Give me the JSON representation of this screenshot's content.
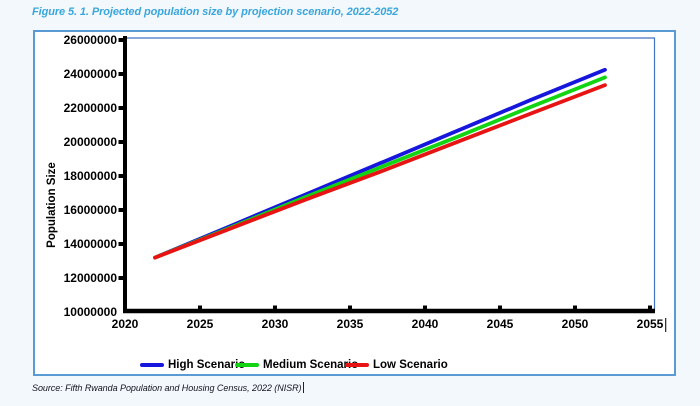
{
  "page": {
    "figure_title": "Figure 5. 1. Projected population size by projection scenario, 2022-2052",
    "source": "Source: Fifth Rwanda Population and Housing Census, 2022 (NISR)"
  },
  "colors": {
    "figure_title": "#39a6dc",
    "figure_box_border": "#5b9bd5",
    "plot_border": "#4472c4",
    "axis": "#000000",
    "high_scenario": "#1616dd",
    "medium_scenario": "#12d412",
    "low_scenario": "#e81414"
  },
  "chart_data": {
    "type": "line",
    "title": "Figure 5. 1. Projected population size by projection scenario, 2022-2052",
    "xlabel": "",
    "ylabel": "Population Size",
    "xlim": [
      2020,
      2055
    ],
    "ylim": [
      10000000,
      26000000
    ],
    "x_ticks": [
      2020,
      2025,
      2030,
      2035,
      2040,
      2045,
      2050,
      2055
    ],
    "y_ticks": [
      10000000,
      12000000,
      14000000,
      16000000,
      18000000,
      20000000,
      22000000,
      24000000,
      26000000
    ],
    "grid": false,
    "legend_position": "bottom",
    "x": [
      2022,
      2027,
      2032,
      2037,
      2042,
      2047,
      2052
    ],
    "series": [
      {
        "name": "High Scenario",
        "color": "#1616dd",
        "values": [
          13200000,
          15050000,
          16900000,
          18750000,
          20600000,
          22450000,
          24250000
        ]
      },
      {
        "name": "Medium Scenario",
        "color": "#12d412",
        "values": [
          13200000,
          14950000,
          16750000,
          18500000,
          20250000,
          22050000,
          23800000
        ]
      },
      {
        "name": "Low Scenario",
        "color": "#e81414",
        "values": [
          13200000,
          14900000,
          16600000,
          18250000,
          19950000,
          21650000,
          23350000
        ]
      }
    ]
  }
}
